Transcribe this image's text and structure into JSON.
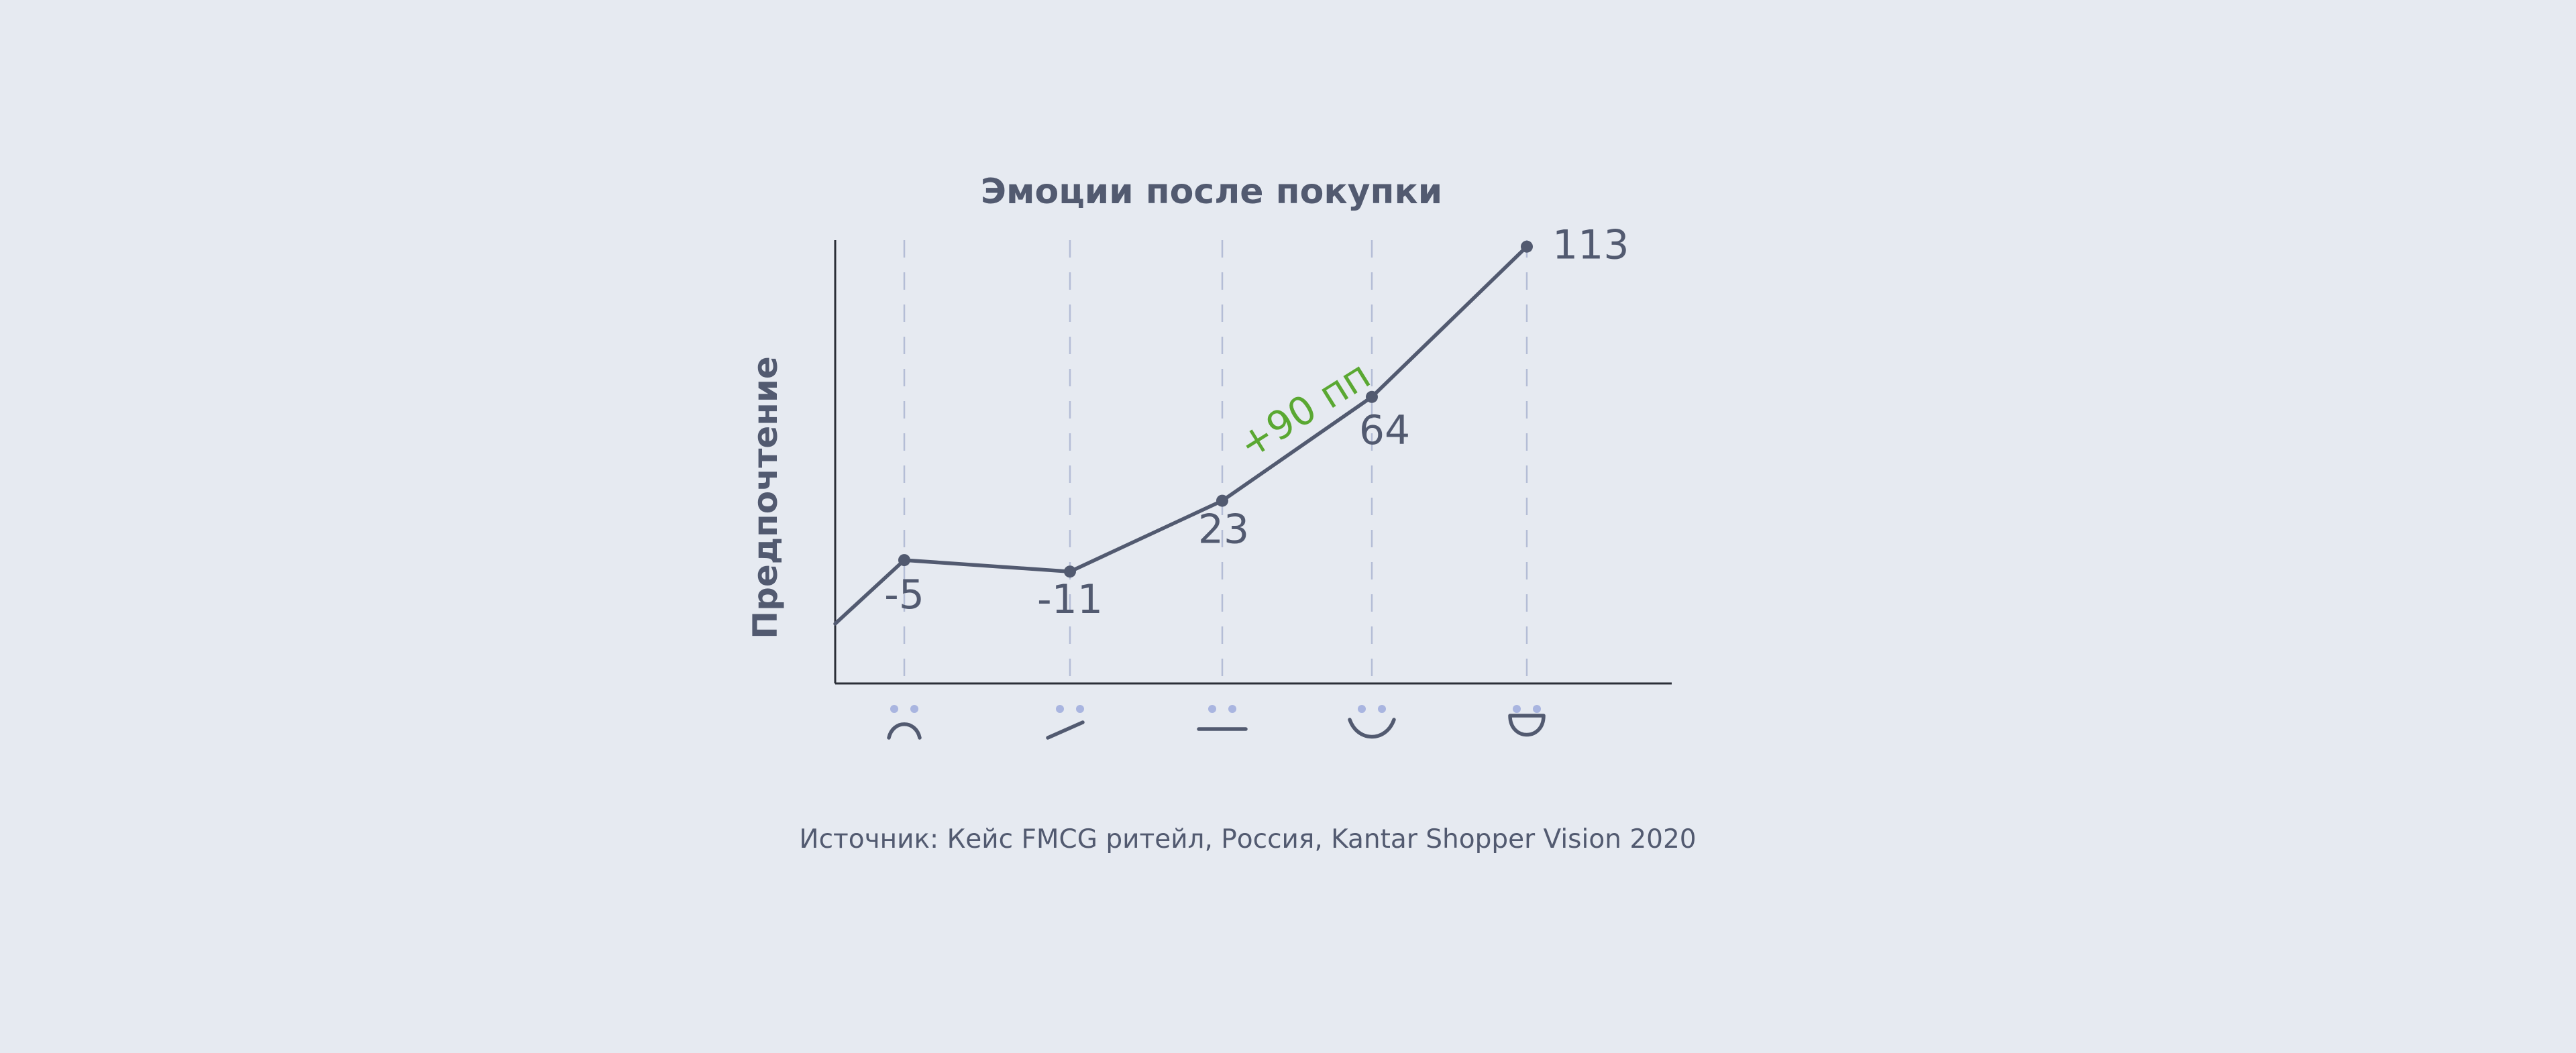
{
  "colors": {
    "background": "#e6eaf1",
    "text": "#525a70",
    "line": "#525a70",
    "grid": "#b4bdd6",
    "face_eyes": "#a9b5e0",
    "annotation": "#5aa832",
    "axis": "#2b2f38"
  },
  "source": "Источник: Кейс FMCG ритейл, Россия, Kantar Shopper Vision 2020",
  "chart_data": {
    "type": "line",
    "title": "Эмоции после покупки",
    "xlabel": "",
    "ylabel": "Предпочтение",
    "categories": [
      "very-sad-face-icon",
      "slightly-sad-face-icon",
      "neutral-face-icon",
      "happy-face-icon",
      "very-happy-face-icon"
    ],
    "values": [
      -5,
      -11,
      23,
      64,
      113
    ],
    "data_labels": [
      "-5",
      "-11",
      "23",
      "64",
      "113"
    ],
    "grid": {
      "vertical": true,
      "style": "dashed"
    },
    "annotation": {
      "text": "+90 пп",
      "between": [
        2,
        3
      ]
    }
  }
}
